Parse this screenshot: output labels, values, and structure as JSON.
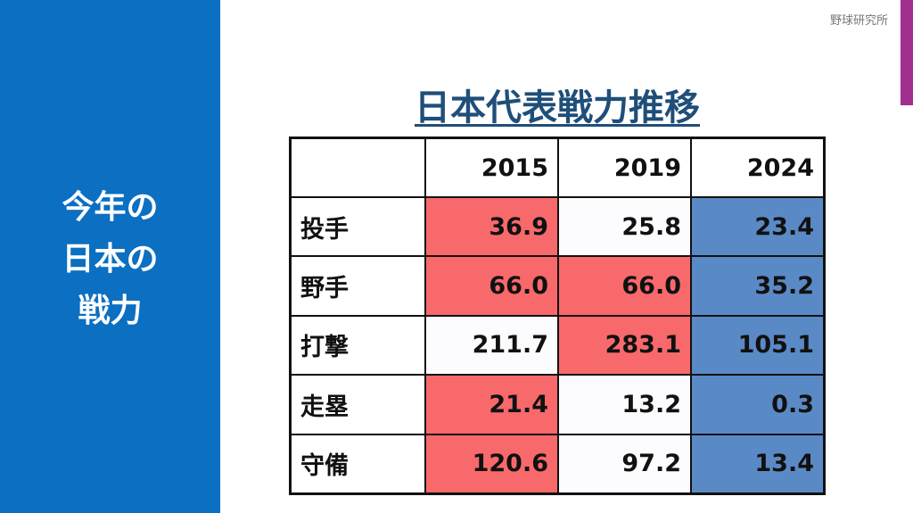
{
  "sidebar": {
    "lines": [
      "今年の",
      "日本の",
      "戦力"
    ]
  },
  "header": {
    "brand": "野球研究所",
    "title": "日本代表戦力推移"
  },
  "table": {
    "columns": [
      "2015",
      "2019",
      "2024"
    ],
    "rows": [
      {
        "label": "投手",
        "cells": [
          "36.9",
          "25.8",
          "23.4"
        ],
        "colors": [
          "#f8696b",
          "#fcfcff",
          "#5a8ac6"
        ]
      },
      {
        "label": "野手",
        "cells": [
          "66.0",
          "66.0",
          "35.2"
        ],
        "colors": [
          "#f8696b",
          "#f8696b",
          "#5a8ac6"
        ]
      },
      {
        "label": "打撃",
        "cells": [
          "211.7",
          "283.1",
          "105.1"
        ],
        "colors": [
          "#fcfcff",
          "#f8696b",
          "#5a8ac6"
        ]
      },
      {
        "label": "走塁",
        "cells": [
          "21.4",
          "13.2",
          "0.3"
        ],
        "colors": [
          "#f8696b",
          "#fcfcff",
          "#5a8ac6"
        ]
      },
      {
        "label": "守備",
        "cells": [
          "120.6",
          "97.2",
          "13.4"
        ],
        "colors": [
          "#f8696b",
          "#fcfcff",
          "#5a8ac6"
        ]
      }
    ]
  }
}
